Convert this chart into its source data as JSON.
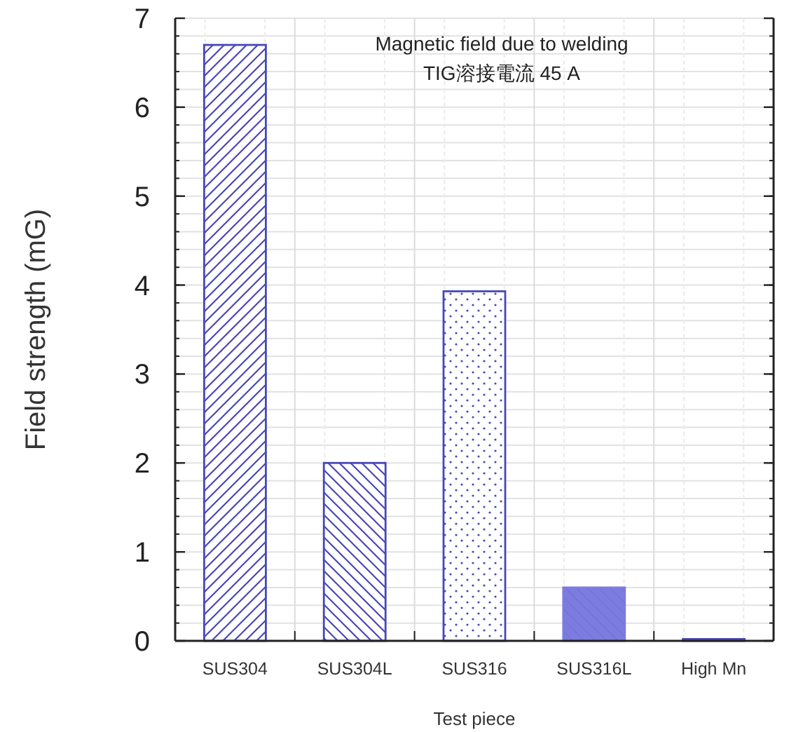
{
  "chart_data": {
    "type": "bar",
    "title": "Magnetic field due to welding",
    "subtitle": "TIG溶接電流  45 A",
    "xlabel": "Test piece",
    "ylabel": "Field strength (mG)",
    "categories": [
      "SUS304",
      "SUS304L",
      "SUS316",
      "SUS316L",
      "High Mn"
    ],
    "values": [
      6.7,
      2.0,
      3.93,
      0.6,
      0.02
    ],
    "colors": [
      "#4848b8",
      "#4848b8",
      "#4848b8",
      "#7c7ce0",
      "#4848b8"
    ],
    "ylim": [
      0,
      7
    ],
    "yticks": [
      0,
      1,
      2,
      3,
      4,
      5,
      6,
      7
    ],
    "grid": true
  }
}
